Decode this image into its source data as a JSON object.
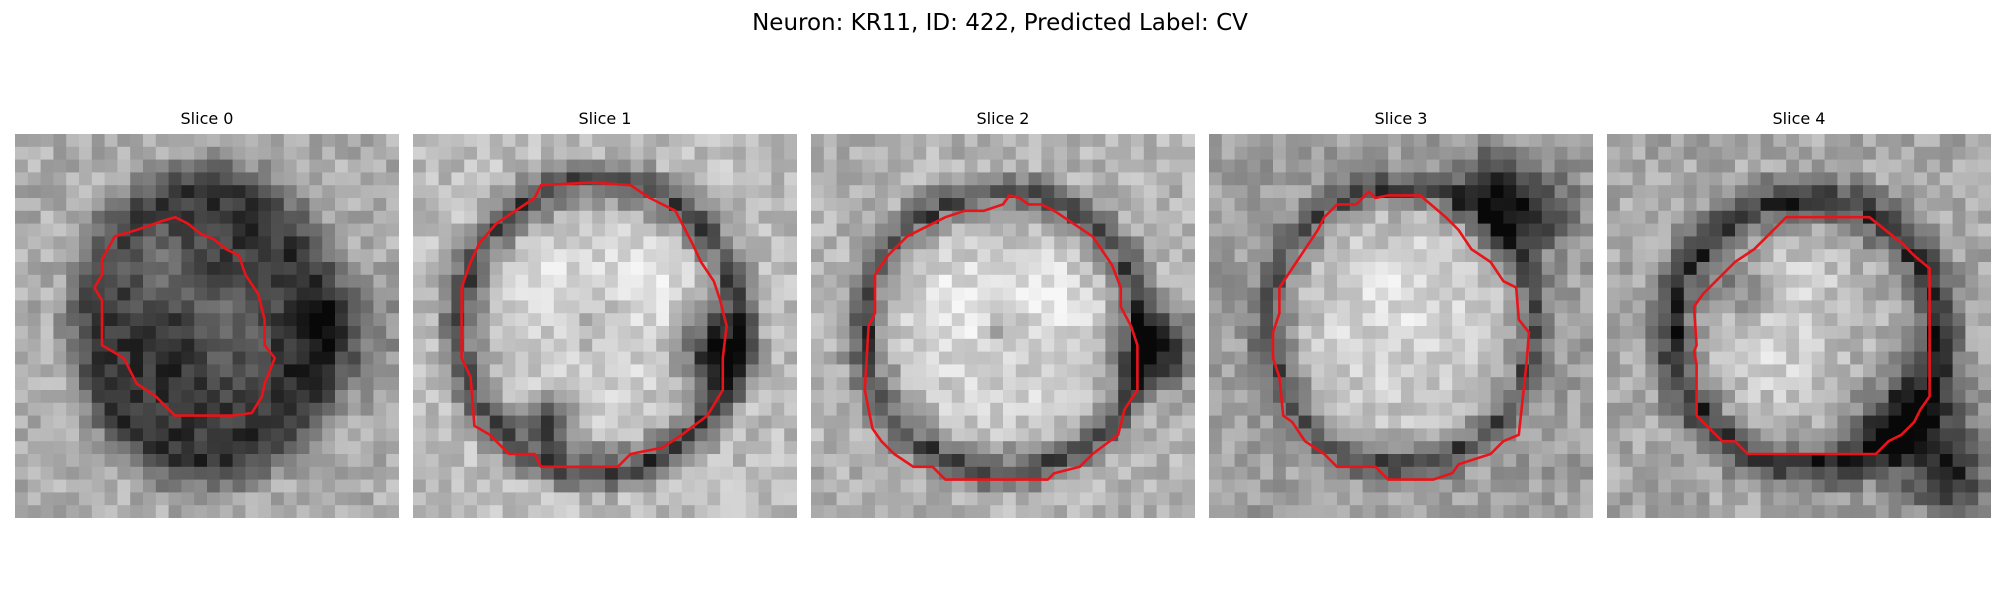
{
  "figure": {
    "title": "Neuron: KR11, ID: 422, Predicted Label: CV"
  },
  "contour_color": "#e8141a",
  "panels": [
    {
      "title": "Slice 0"
    },
    {
      "title": "Slice 1"
    },
    {
      "title": "Slice 2"
    },
    {
      "title": "Slice 3"
    },
    {
      "title": "Slice 4"
    }
  ]
}
